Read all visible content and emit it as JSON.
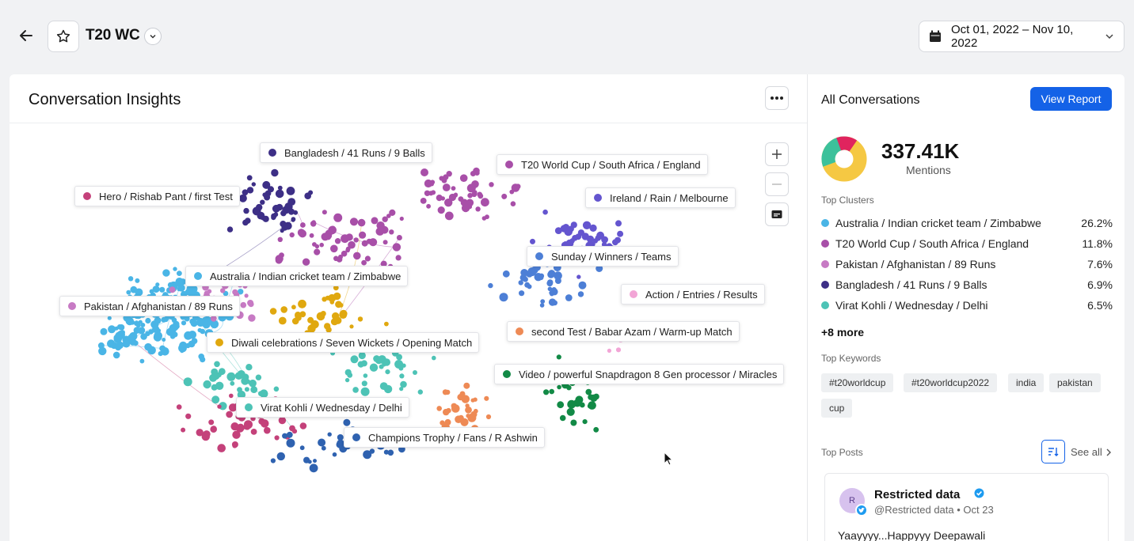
{
  "header": {
    "title": "T20 WC",
    "date_range": "Oct 01, 2022 – Nov 10, 2022"
  },
  "insights": {
    "title": "Conversation Insights",
    "cluster_labels": [
      {
        "text": "Bangladesh / 41 Runs / 9 Balls",
        "color": "#3d2f86"
      },
      {
        "text": "T20 World Cup / South Africa / England",
        "color": "#a84fa8"
      },
      {
        "text": "Hero / Rishab Pant / first Test",
        "color": "#c4417a"
      },
      {
        "text": "Ireland / Rain / Melbourne",
        "color": "#6455cf"
      },
      {
        "text": "Sunday / Winners / Teams",
        "color": "#4d7fd6"
      },
      {
        "text": "Australia / Indian cricket team / Zimbabwe",
        "color": "#4ab5e6"
      },
      {
        "text": "Action / Entries / Results",
        "color": "#f2a5d6"
      },
      {
        "text": "Pakistan / Afghanistan / 89 Runs",
        "color": "#c77ac4"
      },
      {
        "text": "second Test / Babar Azam / Warm-up Match",
        "color": "#ee8a55"
      },
      {
        "text": "Diwali celebrations / Seven Wickets / Opening Match",
        "color": "#e0a80f"
      },
      {
        "text": "Video / powerful Snapdragon 8 Gen processor / Miracles",
        "color": "#128a46"
      },
      {
        "text": "Virat Kohli / Wednesday / Delhi",
        "color": "#4dc3b6"
      },
      {
        "text": "Champions Trophy / Fans / R Ashwin",
        "color": "#2f62b0"
      }
    ]
  },
  "all_conversations": {
    "title": "All Conversations",
    "view_report": "View Report",
    "mentions_value": "337.41K",
    "mentions_label": "Mentions",
    "donut_colors": [
      "#f5c843",
      "#3cc19b",
      "#e0245e"
    ],
    "top_clusters_title": "Top Clusters",
    "top_clusters": [
      {
        "name": "Australia / Indian cricket team / Zimbabwe",
        "pct": "26.2%",
        "color": "#4ab5e6"
      },
      {
        "name": "T20 World Cup / South Africa / England",
        "pct": "11.8%",
        "color": "#a84fa8"
      },
      {
        "name": "Pakistan / Afghanistan / 89 Runs",
        "pct": "7.6%",
        "color": "#c77ac4"
      },
      {
        "name": "Bangladesh / 41 Runs / 9 Balls",
        "pct": "6.9%",
        "color": "#3d2f86"
      },
      {
        "name": "Virat Kohli / Wednesday / Delhi",
        "pct": "6.5%",
        "color": "#4dc3b6"
      }
    ],
    "more_link": "+8 more",
    "top_keywords_title": "Top Keywords",
    "keywords": [
      "#t20worldcup",
      "#t20worldcup2022",
      "india",
      "pakistan",
      "cup"
    ],
    "top_posts_title": "Top Posts",
    "see_all": "See all",
    "post": {
      "avatar_initial": "R",
      "name": "Restricted data",
      "handle": "@Restricted data",
      "date": "Oct 23",
      "text": "Yaayyyy...Happyyy Deepawali"
    }
  }
}
